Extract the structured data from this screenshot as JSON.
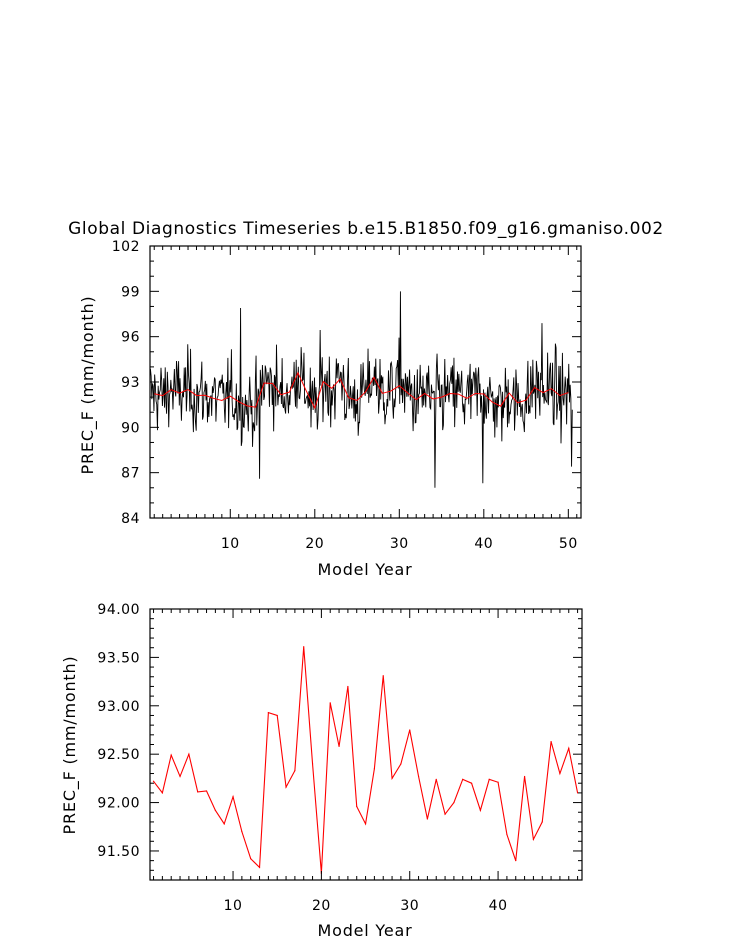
{
  "chart_data": [
    {
      "type": "line",
      "title": "Global Diagnostics Timeseries b.e15.B1850.f09_g16.gmaniso.002",
      "xlabel": "Model Year",
      "ylabel": "PREC_F (mm/month)",
      "xlim": [
        0.5,
        51.5
      ],
      "ylim": [
        84,
        102
      ],
      "xticks": [
        10,
        20,
        30,
        40,
        50
      ],
      "yticks": [
        84,
        87,
        90,
        93,
        96,
        99,
        102
      ],
      "ytick_labels": [
        "84",
        "87",
        "90",
        "93",
        "96",
        "99",
        "102"
      ],
      "series": [
        {
          "name": "monthly",
          "color": "#000000",
          "generator": "monthly values around the annual means, about 50 years x 12 months",
          "extremes": [
            {
              "x": 11.2,
              "y": 97.9
            },
            {
              "x": 13.5,
              "y": 86.6
            },
            {
              "x": 30.1,
              "y": 99.0
            },
            {
              "x": 34.2,
              "y": 86.0
            },
            {
              "x": 39.9,
              "y": 86.3
            },
            {
              "x": 46.9,
              "y": 96.9
            },
            {
              "x": 50.4,
              "y": 87.4
            }
          ]
        },
        {
          "name": "annual mean",
          "color": "#ff0000",
          "x": [
            1,
            2,
            3,
            4,
            5,
            6,
            7,
            8,
            9,
            10,
            11,
            12,
            13,
            14,
            15,
            16,
            17,
            18,
            19,
            20,
            21,
            22,
            23,
            24,
            25,
            26,
            27,
            28,
            29,
            30,
            31,
            32,
            33,
            34,
            35,
            36,
            37,
            38,
            39,
            40,
            41,
            42,
            43,
            44,
            45,
            46,
            47,
            48,
            49,
            50
          ],
          "values": [
            92.22,
            92.1,
            92.49,
            92.27,
            92.5,
            92.11,
            92.12,
            91.92,
            91.78,
            92.06,
            91.7,
            91.42,
            91.33,
            92.93,
            92.9,
            92.16,
            92.33,
            93.61,
            92.4,
            91.27,
            93.03,
            92.58,
            93.2,
            91.96,
            91.78,
            92.35,
            93.31,
            92.25,
            92.4,
            92.75,
            92.27,
            91.83,
            92.24,
            91.88,
            92.0,
            92.24,
            92.2,
            91.92,
            92.24,
            92.21,
            91.67,
            91.4,
            92.27,
            91.62,
            91.8,
            92.63,
            92.3,
            92.56,
            92.1,
            92.3
          ]
        }
      ]
    },
    {
      "type": "line",
      "title": "",
      "xlabel": "Model Year",
      "ylabel": "PREC_F (mm/month)",
      "xlim": [
        0.6,
        49.5
      ],
      "ylim": [
        91.2,
        94.0
      ],
      "xticks": [
        10,
        20,
        30,
        40
      ],
      "yticks": [
        91.5,
        92.0,
        92.5,
        93.0,
        93.5,
        94.0
      ],
      "ytick_labels": [
        "91.50",
        "92.00",
        "92.50",
        "93.00",
        "93.50",
        "94.00"
      ],
      "series": [
        {
          "name": "annual mean",
          "color": "#ff0000",
          "x": [
            1,
            2,
            3,
            4,
            5,
            6,
            7,
            8,
            9,
            10,
            11,
            12,
            13,
            14,
            15,
            16,
            17,
            18,
            19,
            20,
            21,
            22,
            23,
            24,
            25,
            26,
            27,
            28,
            29,
            30,
            31,
            32,
            33,
            34,
            35,
            36,
            37,
            38,
            39,
            40,
            41,
            42,
            43,
            44,
            45,
            46,
            47,
            48,
            49
          ],
          "values": [
            92.22,
            92.1,
            92.49,
            92.27,
            92.5,
            92.11,
            92.12,
            91.92,
            91.78,
            92.06,
            91.7,
            91.42,
            91.33,
            92.93,
            92.9,
            92.16,
            92.33,
            93.61,
            92.4,
            91.27,
            93.03,
            92.58,
            93.2,
            91.96,
            91.78,
            92.35,
            93.31,
            92.25,
            92.4,
            92.75,
            92.27,
            91.83,
            92.24,
            91.88,
            92.0,
            92.24,
            92.2,
            91.92,
            92.24,
            92.21,
            91.67,
            91.4,
            92.27,
            91.62,
            91.8,
            92.63,
            92.3,
            92.56,
            92.1
          ]
        }
      ]
    }
  ]
}
